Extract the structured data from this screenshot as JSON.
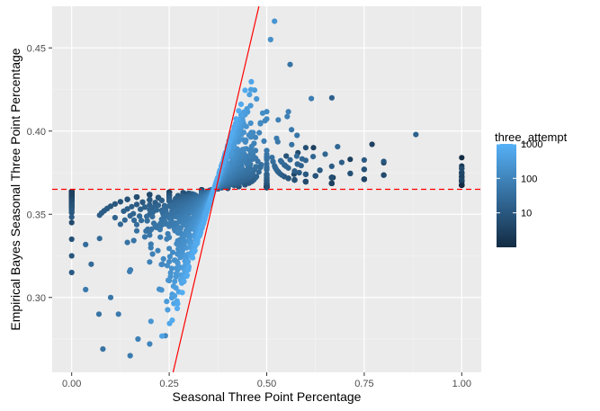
{
  "chart_data": {
    "type": "scatter",
    "title": "",
    "xlabel": "Seasonal Three Point Percentage",
    "ylabel": "Empirical Bayes Seasonal Three Point Percentage",
    "xlim": [
      -0.05,
      1.05
    ],
    "ylim": [
      0.255,
      0.475
    ],
    "x_ticks": [
      0.0,
      0.25,
      0.5,
      0.75,
      1.0
    ],
    "x_tick_labels": [
      "0.00",
      "0.25",
      "0.50",
      "0.75",
      "1.00"
    ],
    "y_ticks": [
      0.3,
      0.35,
      0.4,
      0.45
    ],
    "y_tick_labels": [
      "0.30",
      "0.35",
      "0.40",
      "0.45"
    ],
    "grid": true,
    "background": "#ebebeb",
    "prior_mean_line": {
      "y": 0.365,
      "color": "#ff0000",
      "style": "dashed"
    },
    "reference_line": {
      "x1": 0.26,
      "y1": 0.255,
      "x2": 0.48,
      "y2": 0.475,
      "color": "#ff0000"
    },
    "color_scale": {
      "title": "three_attempt",
      "log": true,
      "min": 1,
      "max": 1000,
      "low_color": "#132b43",
      "high_color": "#56b1f7",
      "breaks": [
        10,
        100,
        1000
      ],
      "break_labels": [
        "10",
        "100",
        "1000"
      ]
    },
    "highlight_points": [
      {
        "x": 0.0,
        "y": 0.363,
        "n": 3
      },
      {
        "x": 0.0,
        "y": 0.355,
        "n": 4
      },
      {
        "x": 0.0,
        "y": 0.345,
        "n": 5
      },
      {
        "x": 0.0,
        "y": 0.335,
        "n": 7
      },
      {
        "x": 0.0,
        "y": 0.325,
        "n": 9
      },
      {
        "x": 0.0,
        "y": 0.315,
        "n": 12
      },
      {
        "x": 1.0,
        "y": 0.384,
        "n": 1
      },
      {
        "x": 1.0,
        "y": 0.379,
        "n": 2
      },
      {
        "x": 1.0,
        "y": 0.374,
        "n": 3
      },
      {
        "x": 1.0,
        "y": 0.371,
        "n": 4
      },
      {
        "x": 0.8,
        "y": 0.381,
        "n": 2
      },
      {
        "x": 0.75,
        "y": 0.377,
        "n": 2
      },
      {
        "x": 0.67,
        "y": 0.372,
        "n": 2
      },
      {
        "x": 0.667,
        "y": 0.42,
        "n": 15
      },
      {
        "x": 0.6,
        "y": 0.39,
        "n": 6
      },
      {
        "x": 0.58,
        "y": 0.387,
        "n": 5
      },
      {
        "x": 0.714,
        "y": 0.383,
        "n": 3
      },
      {
        "x": 0.77,
        "y": 0.392,
        "n": 3
      },
      {
        "x": 0.52,
        "y": 0.466,
        "n": 220
      },
      {
        "x": 0.51,
        "y": 0.455,
        "n": 180
      },
      {
        "x": 0.56,
        "y": 0.44,
        "n": 40
      },
      {
        "x": 0.62,
        "y": 0.39,
        "n": 3
      },
      {
        "x": 0.55,
        "y": 0.385,
        "n": 8
      },
      {
        "x": 0.57,
        "y": 0.374,
        "n": 4
      },
      {
        "x": 0.5,
        "y": 0.37,
        "n": 5
      },
      {
        "x": 0.5,
        "y": 0.374,
        "n": 4
      },
      {
        "x": 0.5,
        "y": 0.366,
        "n": 6
      },
      {
        "x": 0.08,
        "y": 0.269,
        "n": 40
      },
      {
        "x": 0.15,
        "y": 0.265,
        "n": 60
      },
      {
        "x": 0.17,
        "y": 0.275,
        "n": 80
      },
      {
        "x": 0.2,
        "y": 0.272,
        "n": 100
      },
      {
        "x": 0.24,
        "y": 0.277,
        "n": 120
      },
      {
        "x": 0.12,
        "y": 0.29,
        "n": 60
      },
      {
        "x": 0.1,
        "y": 0.3,
        "n": 50
      },
      {
        "x": 0.05,
        "y": 0.32,
        "n": 25
      },
      {
        "x": 0.07,
        "y": 0.29,
        "n": 40
      }
    ]
  }
}
